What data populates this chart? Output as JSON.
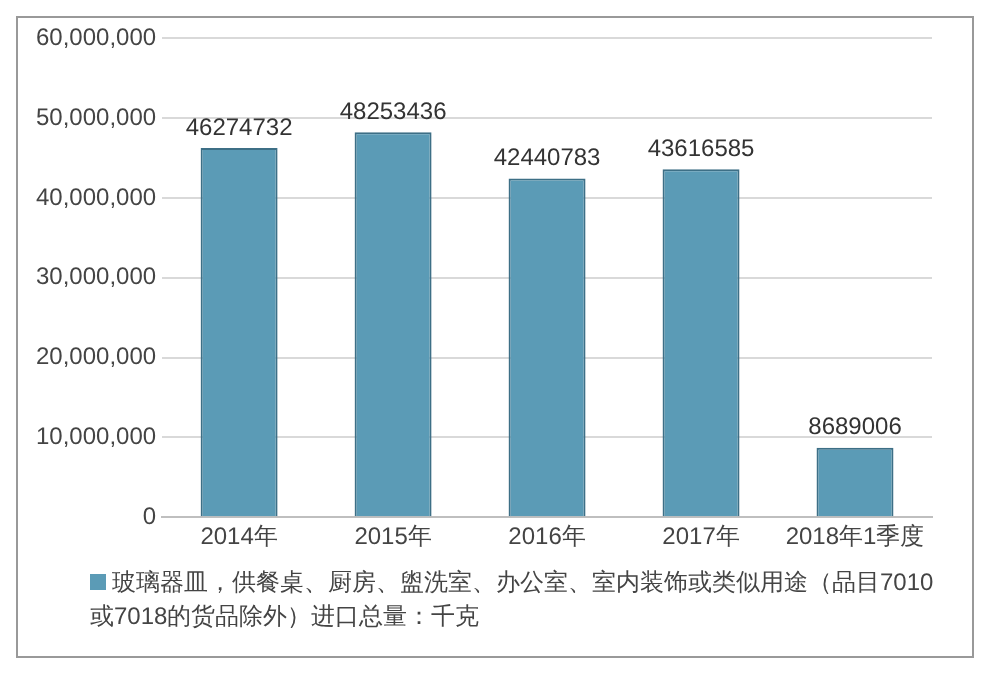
{
  "chart_data": {
    "type": "bar",
    "categories": [
      "2014年",
      "2015年",
      "2016年",
      "2017年",
      "2018年1季度"
    ],
    "series": [
      {
        "name": "玻璃器皿，供餐桌、厨房、盥洗室、办公室、室内装饰或类似用途（品目7010或7018的货品除外）进口总量：千克",
        "color": "#5b9bb6",
        "values": [
          46274732,
          48253436,
          42440783,
          43616585,
          8689006
        ]
      }
    ],
    "ylim": [
      0,
      60000000
    ],
    "yticks": [
      {
        "value": 0,
        "label": "0"
      },
      {
        "value": 10000000,
        "label": "10,000,000"
      },
      {
        "value": 20000000,
        "label": "20,000,000"
      },
      {
        "value": 30000000,
        "label": "30,000,000"
      },
      {
        "value": 40000000,
        "label": "40,000,000"
      },
      {
        "value": 50000000,
        "label": "50,000,000"
      },
      {
        "value": 60000000,
        "label": "60,000,000"
      }
    ],
    "grid": "y",
    "data_labels": true,
    "legend": "bottom"
  }
}
